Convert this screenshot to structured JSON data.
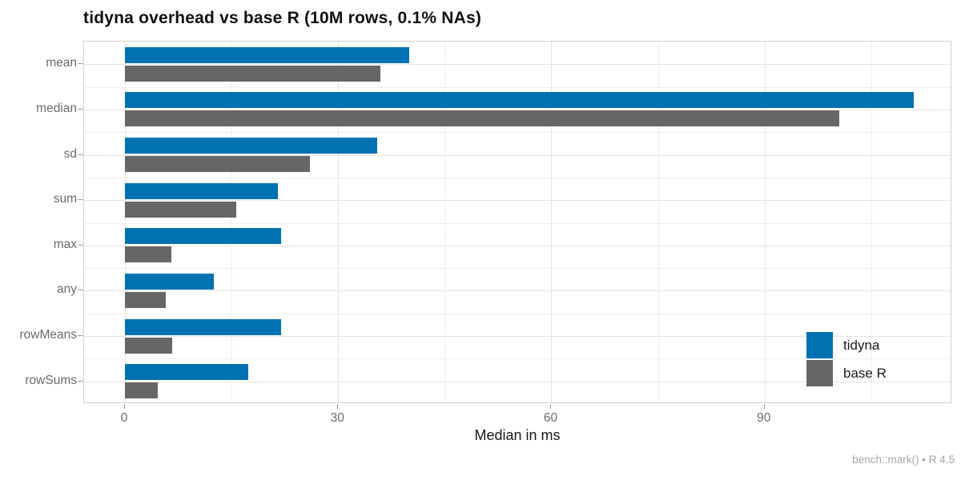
{
  "title": "tidyna overhead vs base R (10M rows, 0.1% NAs)",
  "caption": "bench::mark() • R 4.5",
  "chart_data": {
    "type": "bar",
    "orientation": "horizontal",
    "title": "tidyna overhead vs base R (10M rows, 0.1% NAs)",
    "xlabel": "Median in ms",
    "categories": [
      "mean",
      "median",
      "sd",
      "sum",
      "max",
      "any",
      "rowMeans",
      "rowSums"
    ],
    "series": [
      {
        "name": "tidyna",
        "color": "#0072B2",
        "values": [
          40,
          111,
          35.5,
          21.5,
          22,
          12.5,
          22,
          17.4
        ]
      },
      {
        "name": "base R",
        "color": "#666666",
        "values": [
          36,
          100.5,
          26,
          15.7,
          6.5,
          5.8,
          6.6,
          4.6
        ]
      }
    ],
    "x_major_ticks": [
      0,
      30,
      60,
      90
    ],
    "x_minor_ticks": [
      15,
      45,
      75,
      105
    ],
    "xlim": [
      -5.75,
      116.4
    ],
    "legend_position": "inside-right",
    "grid": true,
    "panel_border_color": "#d2d2d2",
    "grid_major_color": "#e4e4e4",
    "grid_minor_color": "#efefef",
    "axis_text_color": "#6b6b6b"
  }
}
